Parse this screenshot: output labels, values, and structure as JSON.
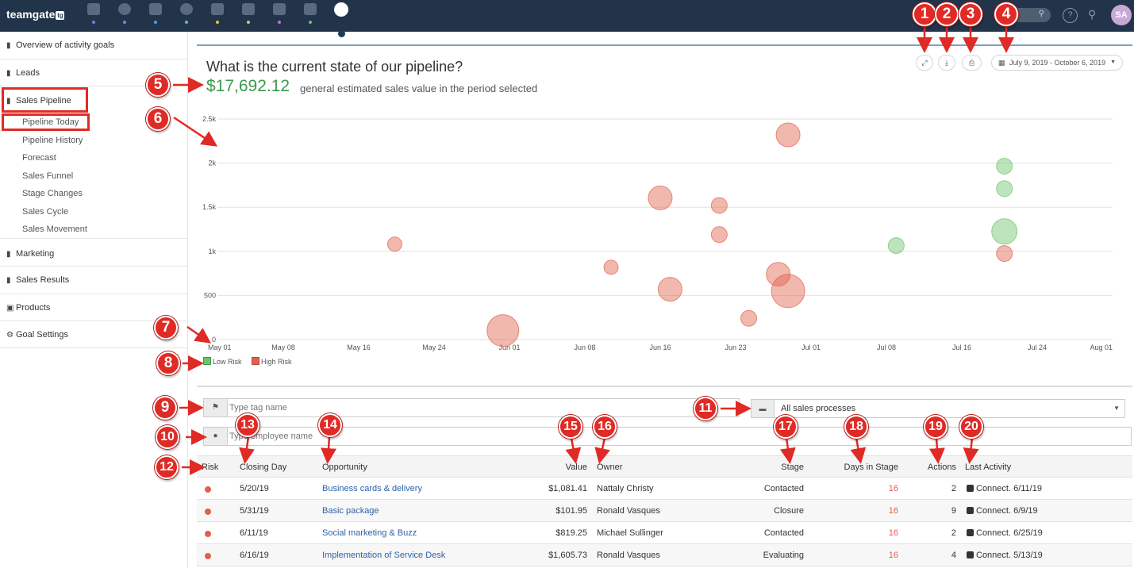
{
  "app": {
    "logo_text": "teamgate",
    "logo_mark": "tg",
    "avatar_initials": "SA",
    "help_glyph": "?"
  },
  "colors": {
    "accent": "#223449",
    "positive": "#3a9a4a",
    "high_risk": "#e0614c",
    "low_risk": "#6cc36a",
    "annotation": "#e02a25"
  },
  "nav_icons": [
    "dashboard-icon",
    "target-icon",
    "buildings-icon",
    "dollar-icon",
    "briefcase-icon",
    "calendar-icon",
    "lock-icon",
    "book-icon",
    "analytics-icon"
  ],
  "sidebar": {
    "sections": [
      {
        "label": "Overview of activity goals",
        "icon": "bar-chart-icon"
      },
      {
        "label": "Leads",
        "icon": "bar-chart-icon"
      },
      {
        "label": "Sales Pipeline",
        "icon": "bar-chart-icon"
      },
      {
        "label": "Marketing",
        "icon": "bar-chart-icon"
      },
      {
        "label": "Sales Results",
        "icon": "bar-chart-icon"
      },
      {
        "label": "Products",
        "icon": "lock-icon"
      },
      {
        "label": "Goal Settings",
        "icon": "gears-icon"
      }
    ],
    "pipeline_items": [
      "Pipeline Today",
      "Pipeline History",
      "Forecast",
      "Sales Funnel",
      "Stage Changes",
      "Sales Cycle",
      "Sales Movement"
    ]
  },
  "report": {
    "title": "What is the current state of our pipeline?",
    "total_value": "$17,692.12",
    "total_desc": "general estimated sales value in the period selected",
    "date_range": "July 9, 2019 - October 6, 2019"
  },
  "chart_data": {
    "type": "scatter",
    "x_ticks": [
      "May 01",
      "May 08",
      "May 16",
      "May 24",
      "Jun 01",
      "Jun 08",
      "Jun 16",
      "Jun 23",
      "Jul 01",
      "Jul 08",
      "Jul 16",
      "Jul 24",
      "Aug 01"
    ],
    "y_ticks": [
      "0",
      "500",
      "1k",
      "1.5k",
      "2k",
      "2.5k"
    ],
    "ylim": [
      0,
      2500
    ],
    "xlim": [
      "2019-05-01",
      "2019-08-01"
    ],
    "legend": [
      "Low Risk",
      "High Risk"
    ],
    "legend_placement": "bottom-left",
    "grid": true,
    "series": [
      {
        "name": "High Risk",
        "color": "#e0614c",
        "points": [
          {
            "x": "2019-05-20",
            "y": 1081,
            "size": 9
          },
          {
            "x": "2019-05-31",
            "y": 102,
            "size": 20
          },
          {
            "x": "2019-06-11",
            "y": 819,
            "size": 9
          },
          {
            "x": "2019-06-16",
            "y": 1606,
            "size": 15
          },
          {
            "x": "2019-06-17",
            "y": 570,
            "size": 15
          },
          {
            "x": "2019-06-22",
            "y": 1520,
            "size": 10
          },
          {
            "x": "2019-06-22",
            "y": 1190,
            "size": 10
          },
          {
            "x": "2019-06-25",
            "y": 240,
            "size": 10
          },
          {
            "x": "2019-06-28",
            "y": 740,
            "size": 15
          },
          {
            "x": "2019-06-29",
            "y": 2320,
            "size": 15
          },
          {
            "x": "2019-06-29",
            "y": 550,
            "size": 21
          },
          {
            "x": "2019-07-21",
            "y": 975,
            "size": 10
          }
        ]
      },
      {
        "name": "Low Risk",
        "color": "#6cc36a",
        "points": [
          {
            "x": "2019-07-10",
            "y": 1065,
            "size": 10
          },
          {
            "x": "2019-07-21",
            "y": 1965,
            "size": 10
          },
          {
            "x": "2019-07-21",
            "y": 1710,
            "size": 10
          },
          {
            "x": "2019-07-21",
            "y": 1225,
            "size": 16
          }
        ]
      }
    ]
  },
  "filters": {
    "tag_placeholder": "Type tag name",
    "employee_placeholder": "Type employee name",
    "process_selected": "All sales processes"
  },
  "table": {
    "headers": {
      "risk": "Risk",
      "closing": "Closing Day",
      "opportunity": "Opportunity",
      "value": "Value",
      "owner": "Owner",
      "stage": "Stage",
      "days": "Days in Stage",
      "actions": "Actions",
      "last": "Last Activity"
    },
    "rows": [
      {
        "closing": "5/20/19",
        "opportunity": "Business cards & delivery",
        "value": "$1,081.41",
        "owner": "Nattaly Christy",
        "stage": "Contacted",
        "days": "16",
        "actions": "2",
        "last": "Connect. 6/11/19"
      },
      {
        "closing": "5/31/19",
        "opportunity": "Basic package",
        "value": "$101.95",
        "owner": "Ronald Vasques",
        "stage": "Closure",
        "days": "16",
        "actions": "9",
        "last": "Connect. 6/9/19"
      },
      {
        "closing": "6/11/19",
        "opportunity": "Social marketing & Buzz",
        "value": "$819.25",
        "owner": "Michael Sullinger",
        "stage": "Contacted",
        "days": "16",
        "actions": "2",
        "last": "Connect. 6/25/19"
      },
      {
        "closing": "6/16/19",
        "opportunity": "Implementation of Service Desk",
        "value": "$1,605.73",
        "owner": "Ronald Vasques",
        "stage": "Evaluating",
        "days": "16",
        "actions": "4",
        "last": "Connect. 5/13/19"
      }
    ]
  },
  "annotations": [
    "1",
    "2",
    "3",
    "4",
    "5",
    "6",
    "7",
    "8",
    "9",
    "10",
    "11",
    "12",
    "13",
    "14",
    "15",
    "16",
    "17",
    "18",
    "19",
    "20"
  ]
}
